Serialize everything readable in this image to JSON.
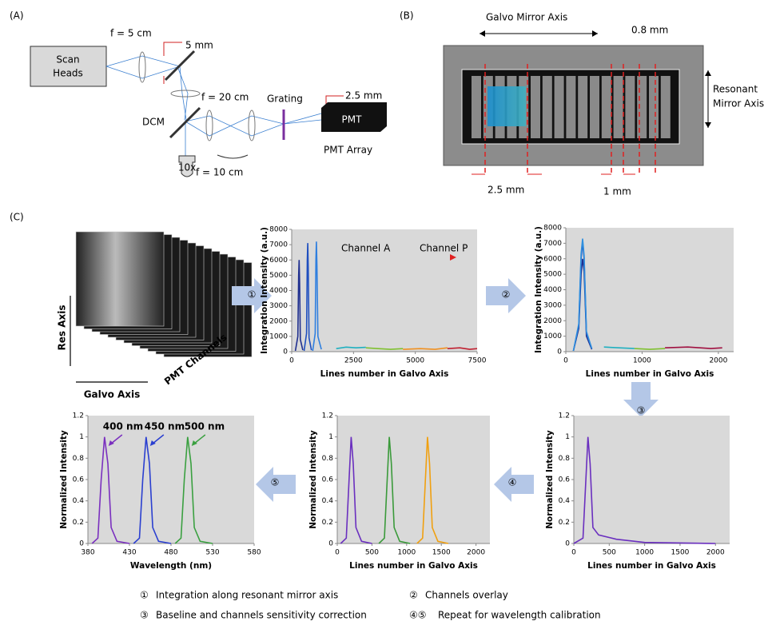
{
  "panel_a": {
    "label": "(A)",
    "scan_heads": [
      "Scan",
      "Heads"
    ],
    "f1": "f = 5 cm",
    "aperture1": "5 mm",
    "f2": "f = 20 cm",
    "dcm": "DCM",
    "objective": "10x",
    "f3": "f = 10 cm",
    "grating": "Grating",
    "aperture2": "2.5 mm",
    "pmt": "PMT",
    "pmt_array": "PMT Array"
  },
  "panel_b": {
    "label": "(B)",
    "galvo_axis": "Galvo Mirror Axis",
    "resonant_axis": [
      "Resonant",
      "Mirror Axis"
    ],
    "gap": "0.8 mm",
    "width": "2.5 mm",
    "spacing": "1 mm"
  },
  "panel_c": {
    "label": "(C)",
    "res_axis": "Res Axis",
    "galvo_axis": "Galvo Axis",
    "pmt_channels": "PMT Channels",
    "steps": [
      "①",
      "②",
      "③",
      "④",
      "⑤"
    ],
    "legend": [
      {
        "marker": "①",
        "text": "Integration along resonant mirror axis"
      },
      {
        "marker": "②",
        "text": "Channels overlay"
      },
      {
        "marker": "③",
        "text": "Baseline and channels sensitivity correction"
      },
      {
        "marker": "④⑤",
        "text": "Repeat for wavelength calibration"
      }
    ]
  },
  "chart_data": [
    {
      "type": "line",
      "ylabel": "Integration Intensity (a.u.)",
      "xlabel": "Lines number in Galvo Axis",
      "xlim": [
        0,
        7500
      ],
      "ylim": [
        0,
        8000
      ],
      "xticks": [
        0,
        2500,
        5000,
        7500
      ],
      "yticks": [
        0,
        1000,
        2000,
        3000,
        4000,
        5000,
        6000,
        7000,
        8000
      ],
      "annotations": [
        "Channel A",
        "Channel P"
      ],
      "series": [
        {
          "color": "#1f2f8f",
          "x": [
            150,
            250,
            280,
            300,
            320,
            350,
            450
          ],
          "values": [
            50,
            1000,
            5000,
            6000,
            4500,
            800,
            100
          ]
        },
        {
          "color": "#1f4fbf",
          "x": [
            500,
            600,
            630,
            650,
            670,
            700,
            800
          ],
          "values": [
            50,
            1200,
            6000,
            7100,
            5500,
            900,
            100
          ]
        },
        {
          "color": "#2f7fdf",
          "x": [
            850,
            950,
            980,
            1000,
            1020,
            1060,
            1200
          ],
          "values": [
            50,
            1200,
            6000,
            7200,
            5600,
            1000,
            150
          ]
        },
        {
          "color": "#20b0c0",
          "x": [
            1800,
            2200,
            2600,
            3000
          ],
          "values": [
            200,
            300,
            250,
            280
          ]
        },
        {
          "color": "#7fc030",
          "x": [
            3000,
            3500,
            4000,
            4500
          ],
          "values": [
            250,
            200,
            150,
            200
          ]
        },
        {
          "color": "#f09020",
          "x": [
            4500,
            5200,
            5800,
            6300
          ],
          "values": [
            150,
            200,
            150,
            250
          ]
        },
        {
          "color": "#c02030",
          "x": [
            6300,
            6800,
            7200,
            7500
          ],
          "values": [
            200,
            250,
            150,
            200
          ]
        }
      ]
    },
    {
      "type": "line",
      "ylabel": "Integration Intensity (a.u.)",
      "xlabel": "Lines number in Galvo Axis",
      "xlim": [
        0,
        2200
      ],
      "ylim": [
        0,
        8000
      ],
      "xticks": [
        0,
        1000,
        2000
      ],
      "yticks": [
        0,
        1000,
        2000,
        3000,
        4000,
        5000,
        6000,
        7000,
        8000
      ],
      "annotations": [],
      "series": [
        {
          "color": "#1f2f8f",
          "x": [
            100,
            170,
            200,
            220,
            240,
            270,
            340
          ],
          "values": [
            50,
            1500,
            5000,
            6000,
            5200,
            1000,
            150
          ]
        },
        {
          "color": "#1f4fbf",
          "x": [
            100,
            170,
            200,
            220,
            240,
            270,
            340
          ],
          "values": [
            50,
            1700,
            6000,
            7100,
            6000,
            1200,
            200
          ]
        },
        {
          "color": "#2f8fdf",
          "x": [
            100,
            170,
            200,
            220,
            240,
            270,
            340
          ],
          "values": [
            50,
            1800,
            6300,
            7300,
            6200,
            1300,
            200
          ]
        },
        {
          "color": "#20b0c0",
          "x": [
            500,
            700,
            900
          ],
          "values": [
            300,
            250,
            200
          ]
        },
        {
          "color": "#7fc030",
          "x": [
            900,
            1100,
            1300
          ],
          "values": [
            200,
            150,
            200
          ]
        },
        {
          "color": "#a01040",
          "x": [
            1300,
            1600,
            1900,
            2050
          ],
          "values": [
            250,
            300,
            200,
            250
          ]
        }
      ]
    },
    {
      "type": "line",
      "ylabel": "Normalized Intensity",
      "xlabel": "Lines number in Galvo Axis",
      "xlim": [
        0,
        2200
      ],
      "ylim": [
        0,
        1.2
      ],
      "xticks": [
        0,
        500,
        1000,
        1500,
        2000
      ],
      "yticks": [
        0,
        0.2,
        0.4,
        0.6,
        0.8,
        1,
        1.2
      ],
      "annotations": [],
      "series": [
        {
          "color": "#6a2fbf",
          "x": [
            0,
            130,
            170,
            200,
            230,
            270,
            350,
            600,
            1000,
            2000
          ],
          "values": [
            0,
            0.05,
            0.6,
            1,
            0.75,
            0.15,
            0.08,
            0.04,
            0.01,
            0
          ]
        }
      ]
    },
    {
      "type": "line",
      "ylabel": "Normalized Intensity",
      "xlabel": "Lines number in Galvo Axis",
      "xlim": [
        0,
        2200
      ],
      "ylim": [
        0,
        1.2
      ],
      "xticks": [
        0,
        500,
        1000,
        1500,
        2000
      ],
      "yticks": [
        0,
        0.2,
        0.4,
        0.6,
        0.8,
        1,
        1.2
      ],
      "annotations": [],
      "series": [
        {
          "color": "#6a2fbf",
          "x": [
            50,
            130,
            170,
            200,
            230,
            270,
            350,
            500
          ],
          "values": [
            0,
            0.05,
            0.6,
            1,
            0.75,
            0.15,
            0.02,
            0
          ]
        },
        {
          "color": "#3a9a3a",
          "x": [
            600,
            680,
            720,
            750,
            780,
            820,
            900,
            1050
          ],
          "values": [
            0,
            0.05,
            0.6,
            1,
            0.75,
            0.15,
            0.02,
            0
          ]
        },
        {
          "color": "#f0a010",
          "x": [
            1150,
            1230,
            1270,
            1300,
            1330,
            1370,
            1450,
            1600
          ],
          "values": [
            0,
            0.05,
            0.6,
            1,
            0.75,
            0.15,
            0.02,
            0
          ]
        }
      ]
    },
    {
      "type": "line",
      "ylabel": "Normalized Intensity",
      "xlabel": "Wavelength (nm)",
      "xlim": [
        380,
        580
      ],
      "ylim": [
        0,
        1.2
      ],
      "xticks": [
        380,
        430,
        480,
        530,
        580
      ],
      "yticks": [
        0,
        0.2,
        0.4,
        0.6,
        0.8,
        1,
        1.2
      ],
      "annotations": [
        "400 nm",
        "450 nm",
        "500 nm"
      ],
      "series": [
        {
          "color": "#7a2fbf",
          "x": [
            385,
            392,
            396,
            400,
            404,
            408,
            415,
            430
          ],
          "values": [
            0,
            0.05,
            0.6,
            1,
            0.75,
            0.15,
            0.02,
            0
          ]
        },
        {
          "color": "#2a3fd0",
          "x": [
            435,
            442,
            446,
            450,
            454,
            458,
            465,
            480
          ],
          "values": [
            0,
            0.05,
            0.6,
            1,
            0.75,
            0.15,
            0.02,
            0
          ]
        },
        {
          "color": "#3aa040",
          "x": [
            485,
            492,
            496,
            500,
            504,
            508,
            515,
            530
          ],
          "values": [
            0,
            0.05,
            0.6,
            1,
            0.75,
            0.15,
            0.02,
            0
          ]
        }
      ]
    }
  ]
}
